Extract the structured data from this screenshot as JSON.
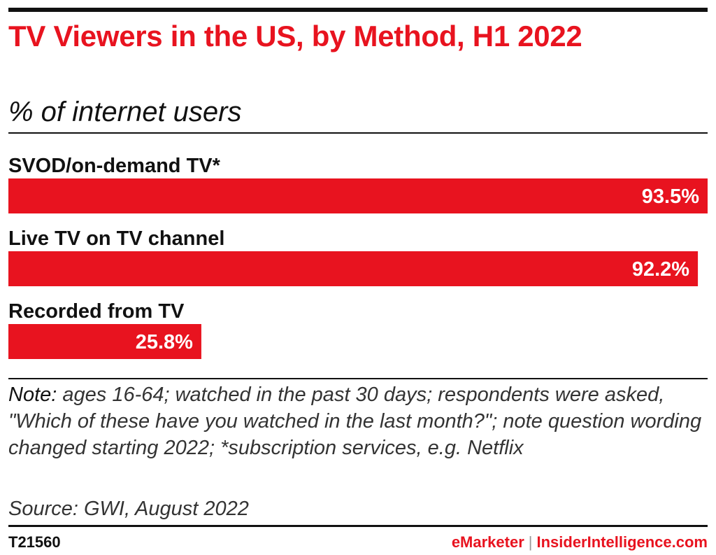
{
  "header": {
    "title": "TV Viewers in the US, by Method, H1 2022",
    "subtitle": "% of internet users"
  },
  "colors": {
    "bar": "#e8131f",
    "bar_label_inside": "#ffffff",
    "bar_label_outside": "#111111",
    "category_label": "#111111"
  },
  "chart_data": {
    "type": "bar",
    "orientation": "horizontal",
    "title": "TV Viewers in the US, by Method, H1 2022",
    "subtitle": "% of internet users",
    "categories": [
      "SVOD/on-demand TV*",
      "Live TV on TV channel",
      "Recorded from TV"
    ],
    "values": [
      93.5,
      92.2,
      25.8
    ],
    "value_labels": [
      "93.5%",
      "92.2%",
      "25.8%"
    ],
    "xlim": [
      0,
      93.5
    ],
    "grid": false,
    "legend": "none"
  },
  "note": {
    "label": "Note:",
    "text": " ages 16-64; watched in the past 30 days; respondents were asked, \"Which of these have you watched in the last month?\"; note question wording changed starting 2022; *subscription services, e.g. Netflix"
  },
  "source": "Source: GWI, August 2022",
  "footer": {
    "chart_id": "T21560",
    "brand_primary": "eMarketer",
    "separator": "|",
    "brand_secondary": "InsiderIntelligence.com"
  }
}
